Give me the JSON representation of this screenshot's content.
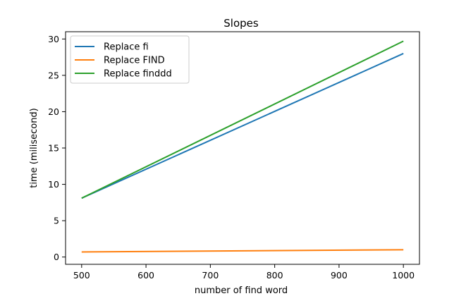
{
  "chart_data": {
    "type": "line",
    "title": "Slopes",
    "xlabel": "number of find word",
    "ylabel": "time (milisecond)",
    "xlim": [
      475,
      1025
    ],
    "ylim": [
      -1,
      31
    ],
    "xticks": [
      500,
      600,
      700,
      800,
      900,
      1000
    ],
    "yticks": [
      0,
      5,
      10,
      15,
      20,
      25,
      30
    ],
    "grid": false,
    "legend_position": "upper-left",
    "series": [
      {
        "name": "Replace fi",
        "color": "#1f77b4",
        "x": [
          500,
          1000
        ],
        "y": [
          8.1,
          28.0
        ]
      },
      {
        "name": "Replace FIND",
        "color": "#ff7f0e",
        "x": [
          500,
          1000
        ],
        "y": [
          0.7,
          1.0
        ]
      },
      {
        "name": "Replace finddd",
        "color": "#2ca02c",
        "x": [
          500,
          1000
        ],
        "y": [
          8.1,
          29.7
        ]
      }
    ]
  }
}
